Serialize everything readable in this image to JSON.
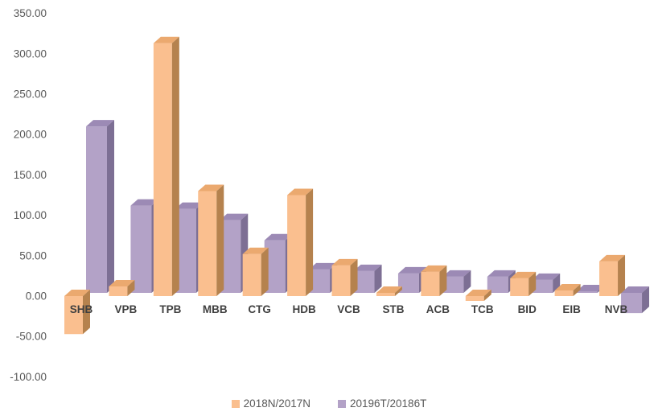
{
  "chart_data": {
    "type": "bar",
    "style": "3d-clustered-column",
    "title": "",
    "xlabel": "",
    "ylabel": "",
    "categories": [
      "SHB",
      "VPB",
      "TPB",
      "MBB",
      "CTG",
      "HDB",
      "VCB",
      "STB",
      "ACB",
      "TCB",
      "BID",
      "EIB",
      "NVB"
    ],
    "series": [
      {
        "name": "2018N/2017N",
        "color": "#FABF8F",
        "top_color": "#EBA96F",
        "side_color": "#B5824E",
        "values": [
          -47,
          12,
          313,
          130,
          52,
          125,
          38,
          4,
          30,
          -6,
          22,
          7,
          43
        ]
      },
      {
        "name": "20196T/20186T",
        "color": "#B3A2C7",
        "top_color": "#9C8AB5",
        "side_color": "#7D6F94",
        "values": [
          206,
          108,
          104,
          90,
          65,
          29,
          27,
          24,
          20,
          20,
          16,
          2,
          -25
        ]
      }
    ],
    "ylim": [
      -100,
      350
    ],
    "ytick_step": 50,
    "ytick_format": "two-decimals",
    "ytick_labels": [
      "350.00",
      "300.00",
      "250.00",
      "200.00",
      "150.00",
      "100.00",
      "50.00",
      "0.00",
      "-50.00",
      "-100.00"
    ],
    "grid": false,
    "legend_position": "bottom",
    "axis_text_color": "#595959",
    "category_text_color": "#404040"
  }
}
